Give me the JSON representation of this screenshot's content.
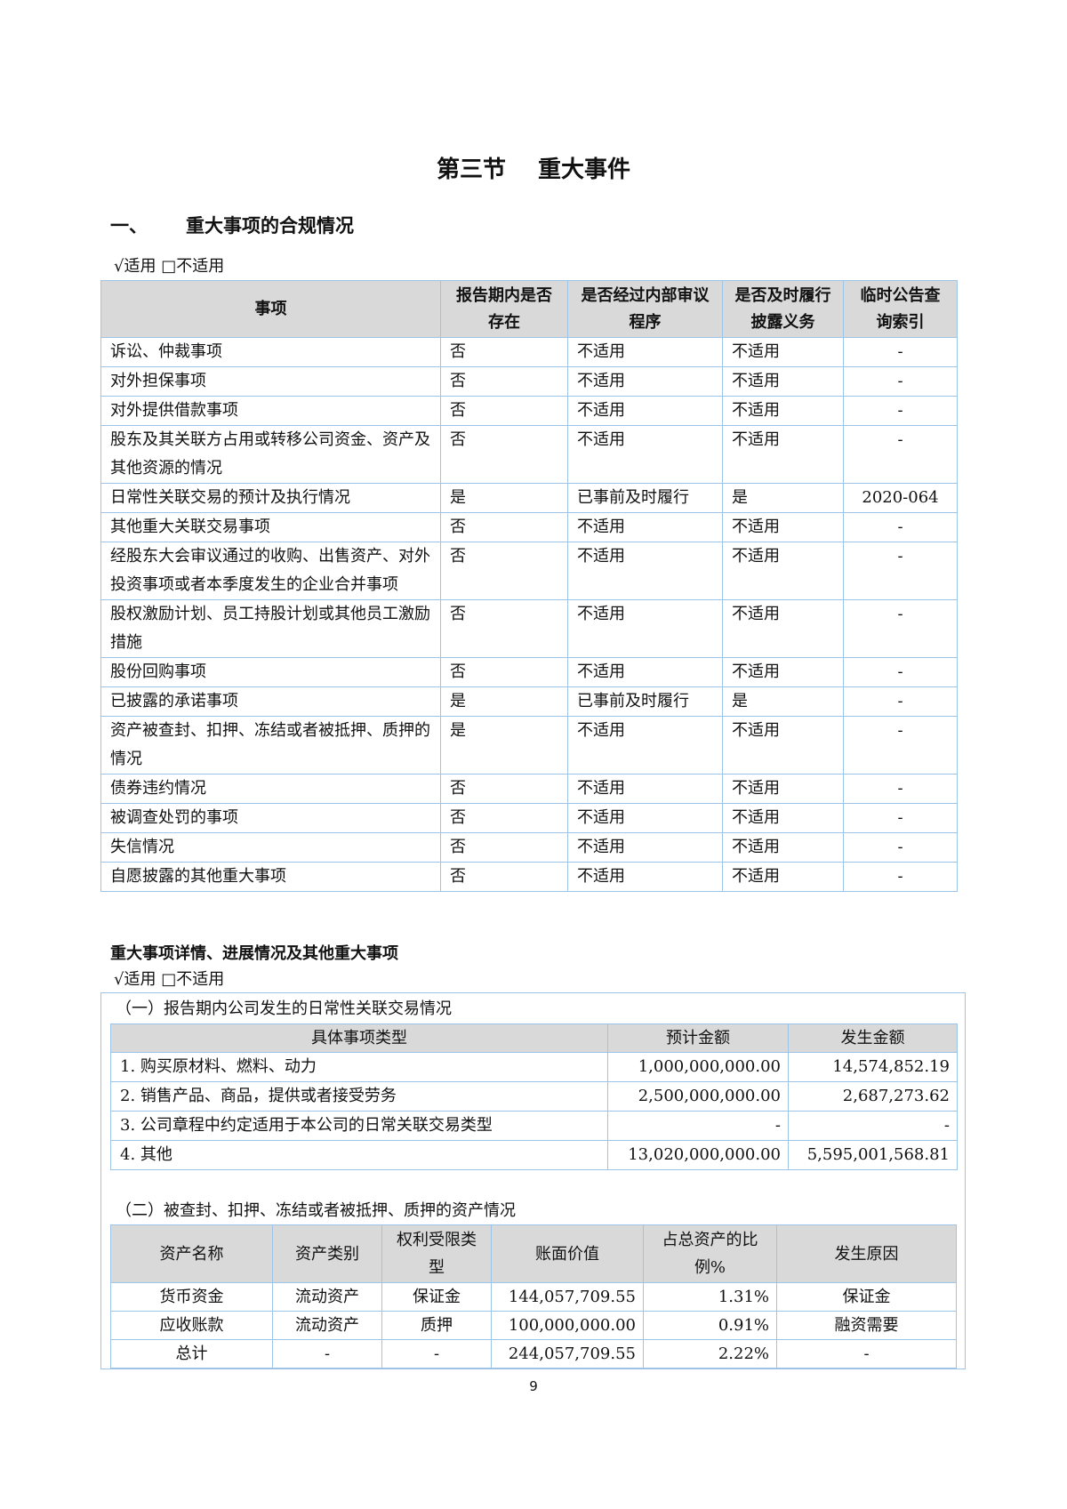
{
  "title": {
    "part1": "第三节",
    "part2": "重大事件"
  },
  "section1": {
    "number": "一、",
    "heading": "重大事项的合规情况"
  },
  "applicability1": "√适用 □不适用",
  "table1": {
    "headers": [
      "事项",
      "报告期内是否存在",
      "是否经过内部审议程序",
      "是否及时履行披露义务",
      "临时公告查询索引"
    ],
    "rows": [
      [
        "诉讼、仲裁事项",
        "否",
        "不适用",
        "不适用",
        "-"
      ],
      [
        "对外担保事项",
        "否",
        "不适用",
        "不适用",
        "-"
      ],
      [
        "对外提供借款事项",
        "否",
        "不适用",
        "不适用",
        "-"
      ],
      [
        "股东及其关联方占用或转移公司资金、资产及其他资源的情况",
        "否",
        "不适用",
        "不适用",
        "-"
      ],
      [
        "日常性关联交易的预计及执行情况",
        "是",
        "已事前及时履行",
        "是",
        "2020-064"
      ],
      [
        "其他重大关联交易事项",
        "否",
        "不适用",
        "不适用",
        "-"
      ],
      [
        "经股东大会审议通过的收购、出售资产、对外投资事项或者本季度发生的企业合并事项",
        "否",
        "不适用",
        "不适用",
        "-"
      ],
      [
        "股权激励计划、员工持股计划或其他员工激励措施",
        "否",
        "不适用",
        "不适用",
        "-"
      ],
      [
        "股份回购事项",
        "否",
        "不适用",
        "不适用",
        "-"
      ],
      [
        "已披露的承诺事项",
        "是",
        "已事前及时履行",
        "是",
        "-"
      ],
      [
        "资产被查封、扣押、冻结或者被抵押、质押的情况",
        "是",
        "不适用",
        "不适用",
        "-"
      ],
      [
        "债券违约情况",
        "否",
        "不适用",
        "不适用",
        "-"
      ],
      [
        "被调查处罚的事项",
        "否",
        "不适用",
        "不适用",
        "-"
      ],
      [
        "失信情况",
        "否",
        "不适用",
        "不适用",
        "-"
      ],
      [
        "自愿披露的其他重大事项",
        "否",
        "不适用",
        "不适用",
        "-"
      ]
    ]
  },
  "section2": {
    "heading": "重大事项详情、进展情况及其他重大事项"
  },
  "applicability2": "√适用 □不适用",
  "subsection1": {
    "caption": "（一）报告期内公司发生的日常性关联交易情况",
    "headers": [
      "具体事项类型",
      "预计金额",
      "发生金额"
    ],
    "rows": [
      [
        "1. 购买原材料、燃料、动力",
        "1,000,000,000.00",
        "14,574,852.19"
      ],
      [
        "2. 销售产品、商品，提供或者接受劳务",
        "2,500,000,000.00",
        "2,687,273.62"
      ],
      [
        "3. 公司章程中约定适用于本公司的日常关联交易类型",
        "-",
        "-"
      ],
      [
        "4. 其他",
        "13,020,000,000.00",
        "5,595,001,568.81"
      ]
    ]
  },
  "subsection2": {
    "caption": "（二）被查封、扣押、冻结或者被抵押、质押的资产情况",
    "headers": [
      "资产名称",
      "资产类别",
      "权利受限类型",
      "账面价值",
      "占总资产的比例%",
      "发生原因"
    ],
    "rows": [
      [
        "货币资金",
        "流动资产",
        "保证金",
        "144,057,709.55",
        "1.31%",
        "保证金"
      ],
      [
        "应收账款",
        "流动资产",
        "质押",
        "100,000,000.00",
        "0.91%",
        "融资需要"
      ],
      [
        "总计",
        "-",
        "-",
        "244,057,709.55",
        "2.22%",
        "-"
      ]
    ]
  },
  "page_number": "9",
  "colors": {
    "border": "#9dc3e6",
    "header_bg": "#d9d9d9"
  }
}
